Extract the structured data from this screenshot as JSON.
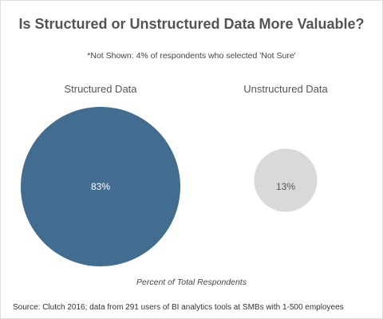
{
  "chart_data": {
    "type": "bubble",
    "title": "Is Structured or Unstructured Data More Valuable?",
    "subtitle": "*Not Shown: 4% of respondents who selected 'Not Sure'",
    "categories": [
      "Structured Data",
      "Unstructured Data"
    ],
    "values": [
      83,
      13
    ],
    "data_labels": [
      "83%",
      "13%"
    ],
    "unit": "%",
    "xlabel": "Percent of Total Respondents",
    "colors": [
      "#436c91",
      "#d9d9d9"
    ],
    "label_colors": [
      "#ffffff",
      "#555555"
    ],
    "grid": false,
    "legend": "none"
  },
  "source": "Source: Clutch 2016; data from 291 users of BI analytics tools at SMBs with 1-500 employees"
}
